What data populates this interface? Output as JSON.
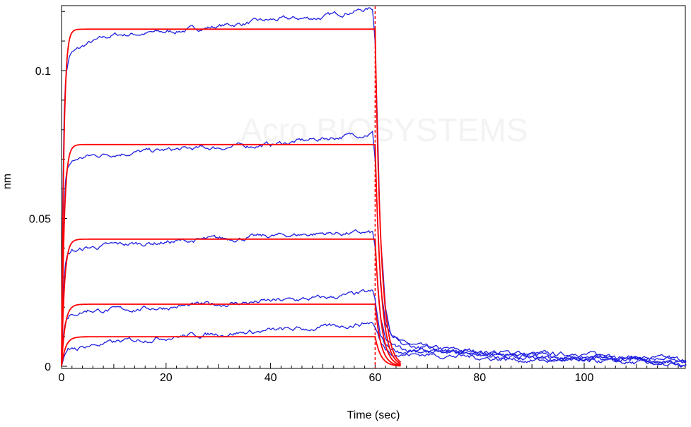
{
  "chart_data": {
    "type": "line",
    "xlabel": "Time (sec)",
    "ylabel": "nm",
    "xlim": [
      0,
      120
    ],
    "ylim": [
      -0.001,
      0.122
    ],
    "x_ticks": [
      0,
      20,
      40,
      60,
      80,
      100
    ],
    "y_ticks": [
      0,
      0.05,
      0.1
    ],
    "x_tick_labels": [
      "0",
      "20",
      "40",
      "60",
      "80",
      "100"
    ],
    "y_tick_labels": [
      "0",
      "0.05",
      "0.1"
    ],
    "dissociation_start": 60,
    "grid": false,
    "legend": "none",
    "watermark": "Acro BIOSYSTEMS",
    "colors": {
      "data": "#1f1fe0",
      "fit": "#ff0000",
      "marker_line": "#ff0000"
    },
    "fit_series": [
      {
        "plateau": 0.114,
        "kon": 2.3,
        "end_at_60": 0.114
      },
      {
        "plateau": 0.075,
        "kon": 2.0,
        "end_at_60": 0.075
      },
      {
        "plateau": 0.043,
        "kon": 1.8,
        "end_at_60": 0.043
      },
      {
        "plateau": 0.021,
        "kon": 1.5,
        "end_at_60": 0.021
      },
      {
        "plateau": 0.01,
        "kon": 1.3,
        "end_at_60": 0.01
      }
    ],
    "data_series": [
      {
        "x": [
          0,
          0.3,
          0.6,
          1,
          1.5,
          2,
          3,
          5,
          10,
          20,
          30,
          40,
          50,
          55,
          59.5,
          60,
          60.5,
          61,
          62,
          63,
          65,
          70,
          80,
          90,
          100,
          110,
          119
        ],
        "y": [
          0.0,
          0.07,
          0.093,
          0.1,
          0.105,
          0.106,
          0.107,
          0.109,
          0.112,
          0.113,
          0.115,
          0.117,
          0.118,
          0.12,
          0.121,
          0.11,
          0.08,
          0.045,
          0.02,
          0.012,
          0.008,
          0.006,
          0.005,
          0.004,
          0.004,
          0.003,
          0.002
        ]
      },
      {
        "x": [
          0,
          0.3,
          0.6,
          1,
          1.5,
          2,
          3,
          5,
          10,
          20,
          30,
          40,
          50,
          55,
          59.5,
          60,
          60.5,
          61,
          62,
          63,
          65,
          70,
          80,
          90,
          100,
          110,
          119
        ],
        "y": [
          0.0,
          0.04,
          0.06,
          0.066,
          0.068,
          0.069,
          0.07,
          0.071,
          0.072,
          0.073,
          0.074,
          0.075,
          0.077,
          0.078,
          0.079,
          0.07,
          0.05,
          0.028,
          0.014,
          0.01,
          0.007,
          0.006,
          0.005,
          0.004,
          0.003,
          0.003,
          0.002
        ]
      },
      {
        "x": [
          0,
          0.3,
          0.6,
          1,
          1.5,
          2,
          3,
          5,
          10,
          20,
          30,
          40,
          50,
          55,
          59.5,
          60,
          60.5,
          61,
          62,
          63,
          65,
          70,
          80,
          90,
          100,
          110,
          119
        ],
        "y": [
          0.0,
          0.024,
          0.033,
          0.037,
          0.038,
          0.039,
          0.039,
          0.04,
          0.041,
          0.042,
          0.043,
          0.044,
          0.045,
          0.045,
          0.045,
          0.04,
          0.028,
          0.016,
          0.009,
          0.007,
          0.006,
          0.005,
          0.004,
          0.003,
          0.003,
          0.002,
          0.001
        ]
      },
      {
        "x": [
          0,
          0.3,
          0.6,
          1,
          1.5,
          2,
          3,
          5,
          10,
          20,
          30,
          40,
          50,
          55,
          59.5,
          60,
          60.5,
          61,
          62,
          63,
          65,
          70,
          80,
          90,
          100,
          110,
          119
        ],
        "y": [
          0.0,
          0.01,
          0.014,
          0.016,
          0.017,
          0.017,
          0.018,
          0.019,
          0.019,
          0.02,
          0.021,
          0.022,
          0.023,
          0.024,
          0.025,
          0.022,
          0.016,
          0.01,
          0.007,
          0.006,
          0.005,
          0.005,
          0.004,
          0.003,
          0.002,
          0.002,
          0.001
        ]
      },
      {
        "x": [
          0,
          0.3,
          0.6,
          1,
          1.5,
          2,
          3,
          5,
          10,
          20,
          30,
          40,
          50,
          55,
          59.5,
          60,
          60.5,
          61,
          62,
          63,
          65,
          70,
          80,
          90,
          100,
          110,
          119
        ],
        "y": [
          0.0,
          0.002,
          0.004,
          0.005,
          0.005,
          0.006,
          0.006,
          0.007,
          0.008,
          0.01,
          0.011,
          0.012,
          0.013,
          0.014,
          0.015,
          0.013,
          0.011,
          0.008,
          0.006,
          0.005,
          0.004,
          0.004,
          0.003,
          0.002,
          0.002,
          0.001,
          0.001
        ]
      }
    ]
  }
}
